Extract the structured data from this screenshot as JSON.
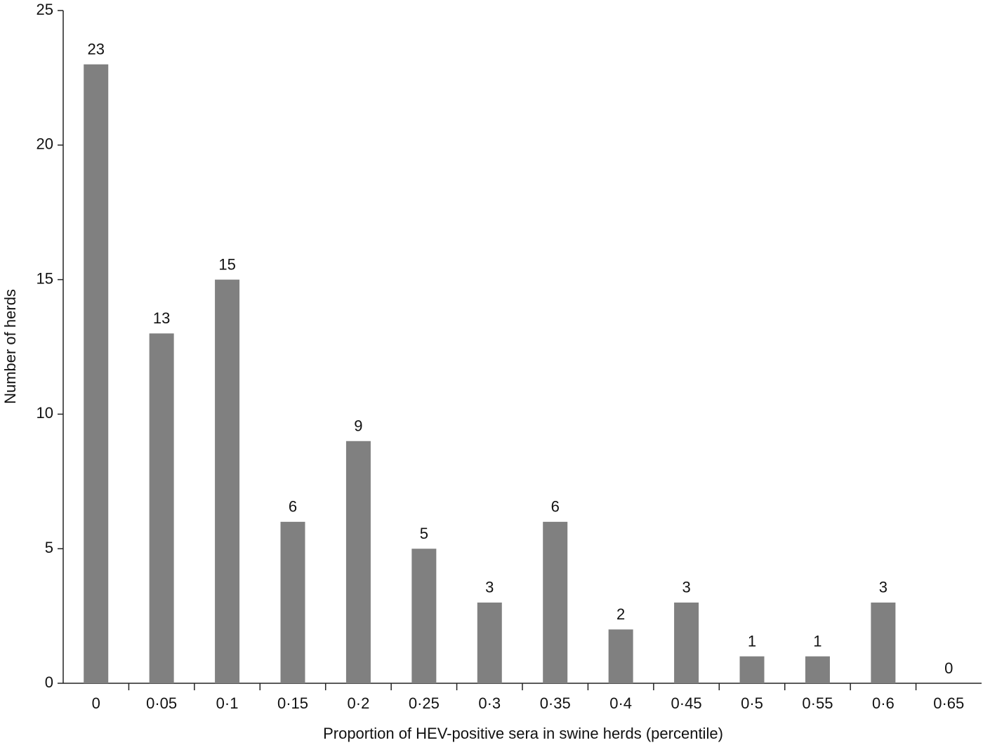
{
  "chart_data": {
    "type": "bar",
    "x_label": "Proportion of HEV-positive sera in swine herds (percentile)",
    "y_label": "Number of herds",
    "categories": [
      "0",
      "0·05",
      "0·1",
      "0·15",
      "0·2",
      "0·25",
      "0·3",
      "0·35",
      "0·4",
      "0·45",
      "0·5",
      "0·55",
      "0·6",
      "0·65"
    ],
    "values": [
      23,
      13,
      15,
      6,
      9,
      5,
      3,
      6,
      2,
      3,
      1,
      1,
      3,
      0
    ],
    "color": "#808080",
    "ylim": [
      0,
      25
    ],
    "yticks": [
      0,
      5,
      10,
      15,
      20,
      25
    ],
    "grid": false
  }
}
